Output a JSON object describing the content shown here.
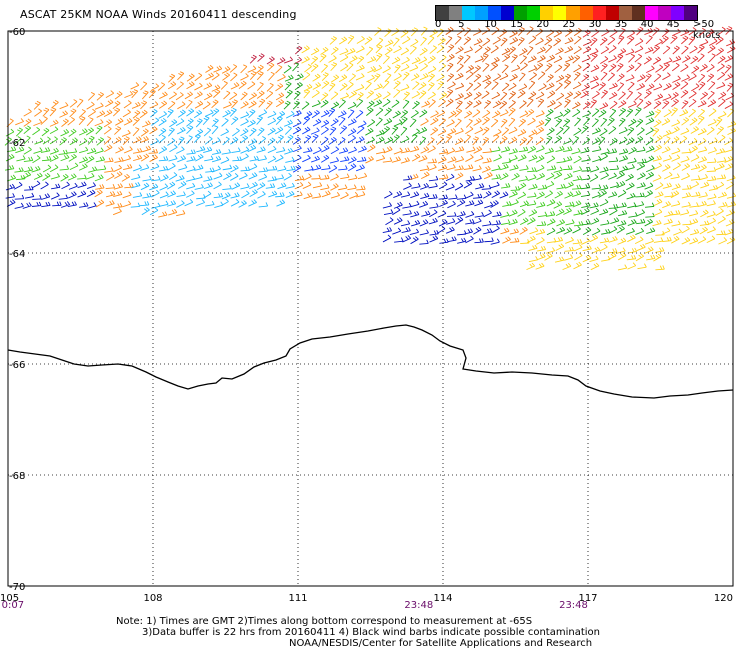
{
  "title": "ASCAT 25KM NOAA Winds 20160411 descending",
  "legend": {
    "colors": [
      "#404040",
      "#808080",
      "#00c8ff",
      "#00a0ff",
      "#0050ff",
      "#0000d0",
      "#00a000",
      "#00d000",
      "#ffd000",
      "#ffff00",
      "#ffa000",
      "#ff6000",
      "#ff2020",
      "#c00000",
      "#a06040",
      "#603020",
      "#ff00ff",
      "#c000c0",
      "#8000ff",
      "#500080"
    ],
    "labels": [
      "0",
      "5",
      "10",
      "15",
      "20",
      "25",
      "30",
      "35",
      "40",
      "45",
      ">50 knots"
    ]
  },
  "axes": {
    "lat_labels": [
      "-60",
      "-62",
      "-64",
      "-66",
      "-68",
      "-70"
    ],
    "lon_labels": [
      "105",
      "108",
      "111",
      "114",
      "117",
      "120"
    ],
    "lat_range": [
      -60,
      -70
    ],
    "lon_range": [
      105,
      120
    ],
    "grid": "dotted"
  },
  "times": [
    {
      "lon": 105.1,
      "label": "0:07"
    },
    {
      "lon": 113.5,
      "label": "23:48"
    },
    {
      "lon": 116.7,
      "label": "23:48"
    }
  ],
  "notes": [
    "Note: 1) Times are GMT 2)Times along bottom correspond to measurement at -65S",
    "3)Data buffer is 22 hrs from 20160411 4) Black wind barbs indicate possible contamination",
    "NOAA/NESDIS/Center for Satellite Applications and Research"
  ]
}
